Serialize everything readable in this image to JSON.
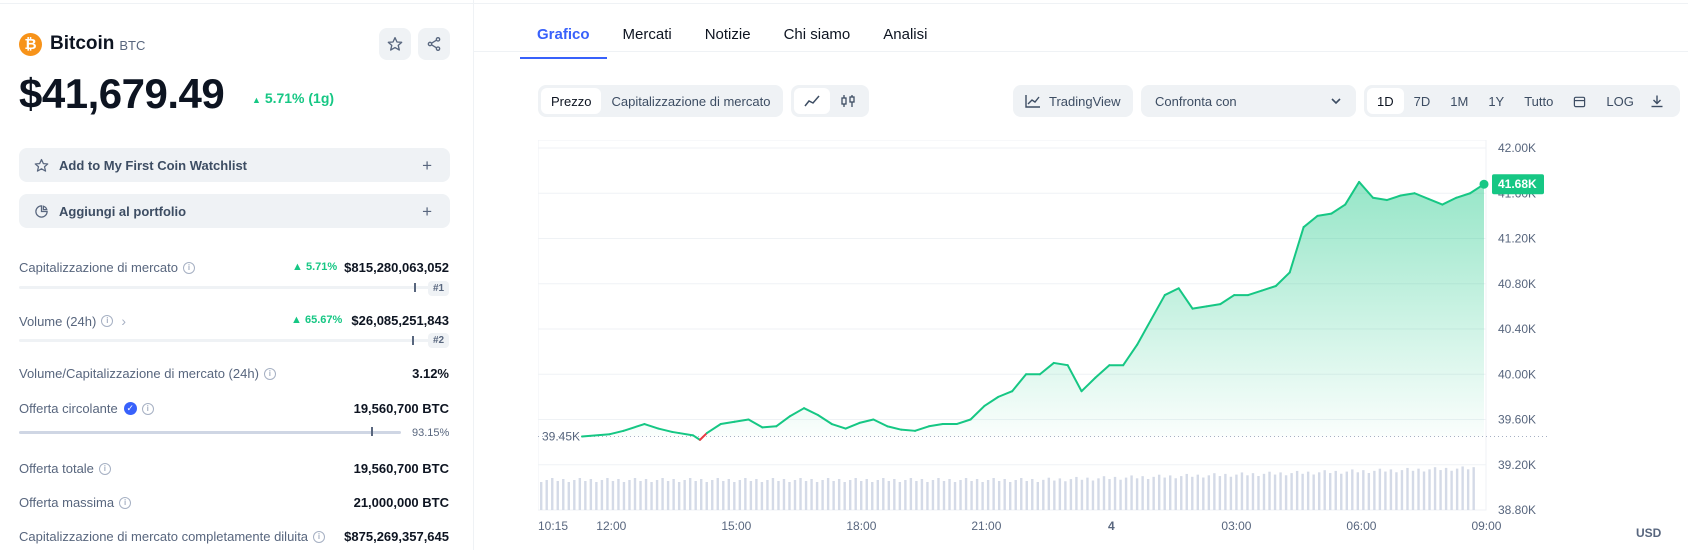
{
  "coin": {
    "name": "Bitcoin",
    "symbol": "BTC",
    "logo_glyph": "₿",
    "price": "$41,679.49",
    "change": "5.71% (1g)"
  },
  "actions": {
    "watchlist_label": "Add to My First Coin Watchlist",
    "portfolio_label": "Aggiungi al portfolio",
    "plus": "+"
  },
  "stats": {
    "market_cap": {
      "label": "Capitalizzazione di mercato",
      "change": "5.71%",
      "value": "$815,280,063,052",
      "rank": "#1"
    },
    "volume": {
      "label": "Volume (24h)",
      "change": "65.67%",
      "value": "$26,085,251,843",
      "rank": "#2"
    },
    "vol_mcap": {
      "label": "Volume/Capitalizzazione di mercato (24h)",
      "value": "3.12%"
    },
    "circulating": {
      "label": "Offerta circolante",
      "value": "19,560,700 BTC",
      "percent": "93.15%",
      "fraction": 0.9315
    },
    "total": {
      "label": "Offerta totale",
      "value": "19,560,700 BTC"
    },
    "max": {
      "label": "Offerta massima",
      "value": "21,000,000 BTC"
    },
    "fdv": {
      "label": "Capitalizzazione di mercato completamente diluita",
      "value": "$875,269,357,645"
    }
  },
  "tabs": [
    "Grafico",
    "Mercati",
    "Notizie",
    "Chi siamo",
    "Analisi"
  ],
  "toolbar": {
    "chart_type": [
      "Prezzo",
      "Capitalizzazione di mercato"
    ],
    "tradingview": "TradingView",
    "compare": "Confronta con",
    "ranges": [
      "1D",
      "7D",
      "1M",
      "1Y",
      "Tutto"
    ],
    "log": "LOG"
  },
  "colors": {
    "up": "#16c784",
    "down": "#ea3943",
    "accent": "#3861fb",
    "brand_btc": "#f7931a"
  },
  "chart_data": {
    "type": "area",
    "ylim": [
      38800,
      42000
    ],
    "yticks": [
      "42.00K",
      "41.60K",
      "41.20K",
      "40.80K",
      "40.40K",
      "40.00K",
      "39.60K",
      "39.20K",
      "38.80K"
    ],
    "xticks": [
      "10:15",
      "12:00",
      "15:00",
      "18:00",
      "21:00",
      "4",
      "03:00",
      "06:00",
      "09:00"
    ],
    "open_label": "39.45K",
    "open_value": 39450,
    "last_label": "41.68K",
    "last_value": 41680,
    "currency": "USD",
    "price_points": [
      [
        0,
        39450
      ],
      [
        2,
        39470
      ],
      [
        3,
        39500
      ],
      [
        4.5,
        39560
      ],
      [
        5.5,
        39520
      ],
      [
        6.5,
        39490
      ],
      [
        7,
        39480
      ],
      [
        8,
        39460
      ],
      [
        8.5,
        39420
      ],
      [
        9,
        39480
      ],
      [
        10,
        39560
      ],
      [
        11,
        39580
      ],
      [
        12,
        39600
      ],
      [
        13,
        39530
      ],
      [
        14,
        39540
      ],
      [
        15,
        39630
      ],
      [
        16,
        39700
      ],
      [
        17,
        39640
      ],
      [
        18,
        39560
      ],
      [
        19,
        39520
      ],
      [
        20,
        39570
      ],
      [
        21,
        39600
      ],
      [
        22,
        39540
      ],
      [
        23,
        39510
      ],
      [
        24,
        39500
      ],
      [
        25,
        39540
      ],
      [
        26,
        39560
      ],
      [
        27,
        39560
      ],
      [
        28,
        39600
      ],
      [
        29,
        39720
      ],
      [
        30,
        39800
      ],
      [
        31,
        39850
      ],
      [
        32,
        40000
      ],
      [
        33,
        40000
      ],
      [
        34,
        40100
      ],
      [
        35,
        40080
      ],
      [
        36,
        39850
      ],
      [
        37,
        39970
      ],
      [
        38,
        40080
      ],
      [
        39,
        40080
      ],
      [
        40,
        40260
      ],
      [
        41,
        40480
      ],
      [
        42,
        40700
      ],
      [
        43,
        40760
      ],
      [
        44,
        40580
      ],
      [
        45,
        40600
      ],
      [
        46,
        40620
      ],
      [
        47,
        40700
      ],
      [
        48,
        40700
      ],
      [
        49,
        40740
      ],
      [
        50,
        40780
      ],
      [
        51,
        40900
      ],
      [
        52,
        41300
      ],
      [
        53,
        41400
      ],
      [
        54,
        41420
      ],
      [
        55,
        41500
      ],
      [
        56,
        41700
      ],
      [
        57,
        41560
      ],
      [
        58,
        41540
      ],
      [
        59,
        41580
      ],
      [
        60,
        41600
      ],
      [
        61,
        41550
      ],
      [
        62,
        41500
      ],
      [
        63,
        41560
      ],
      [
        64,
        41600
      ],
      [
        65,
        41680
      ]
    ],
    "volume_note": "volume bars shown along bottom"
  }
}
